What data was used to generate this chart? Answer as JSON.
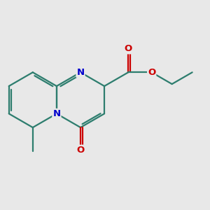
{
  "bg_color": "#e8e8e8",
  "bond_color": "#2d7d6e",
  "N_color": "#0000cc",
  "O_color": "#cc0000",
  "figsize": [
    3.0,
    3.0
  ],
  "dpi": 100,
  "xlim": [
    -1.5,
    8.5
  ],
  "ylim": [
    -3.5,
    4.0
  ]
}
